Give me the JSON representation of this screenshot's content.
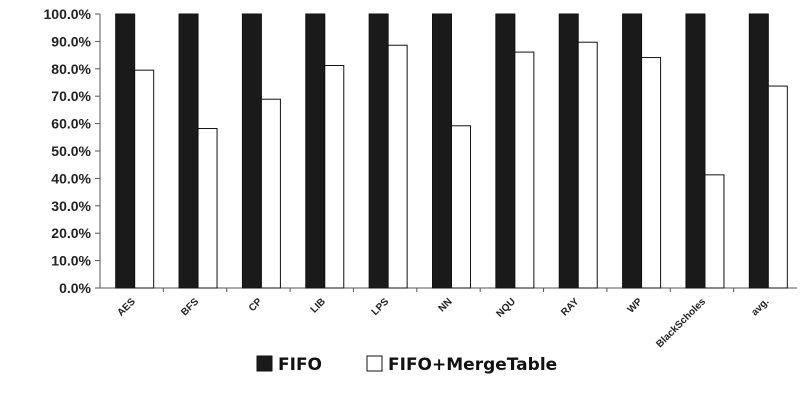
{
  "chart_data": {
    "type": "bar",
    "categories": [
      "AES",
      "BFS",
      "CP",
      "LIB",
      "LPS",
      "NN",
      "NQU",
      "RAY",
      "WP",
      "BlackScholes",
      "avg."
    ],
    "series": [
      {
        "name": "FIFO",
        "color": "#1a1a1a",
        "values": [
          100,
          100,
          100,
          100,
          100,
          100,
          100,
          100,
          100,
          100,
          100
        ]
      },
      {
        "name": "FIFO+MergeTable",
        "color": "#ffffff",
        "values": [
          79.5,
          58.2,
          68.9,
          81.2,
          88.6,
          59.2,
          86.1,
          89.7,
          84.1,
          41.3,
          73.7
        ]
      }
    ],
    "yticks": [
      "0.0%",
      "10.0%",
      "20.0%",
      "30.0%",
      "40.0%",
      "50.0%",
      "60.0%",
      "70.0%",
      "80.0%",
      "90.0%",
      "100.0%"
    ],
    "ylim": [
      0,
      100
    ],
    "grid": false,
    "legend_position": "bottom-center",
    "title": "",
    "xlabel": "",
    "ylabel": ""
  }
}
